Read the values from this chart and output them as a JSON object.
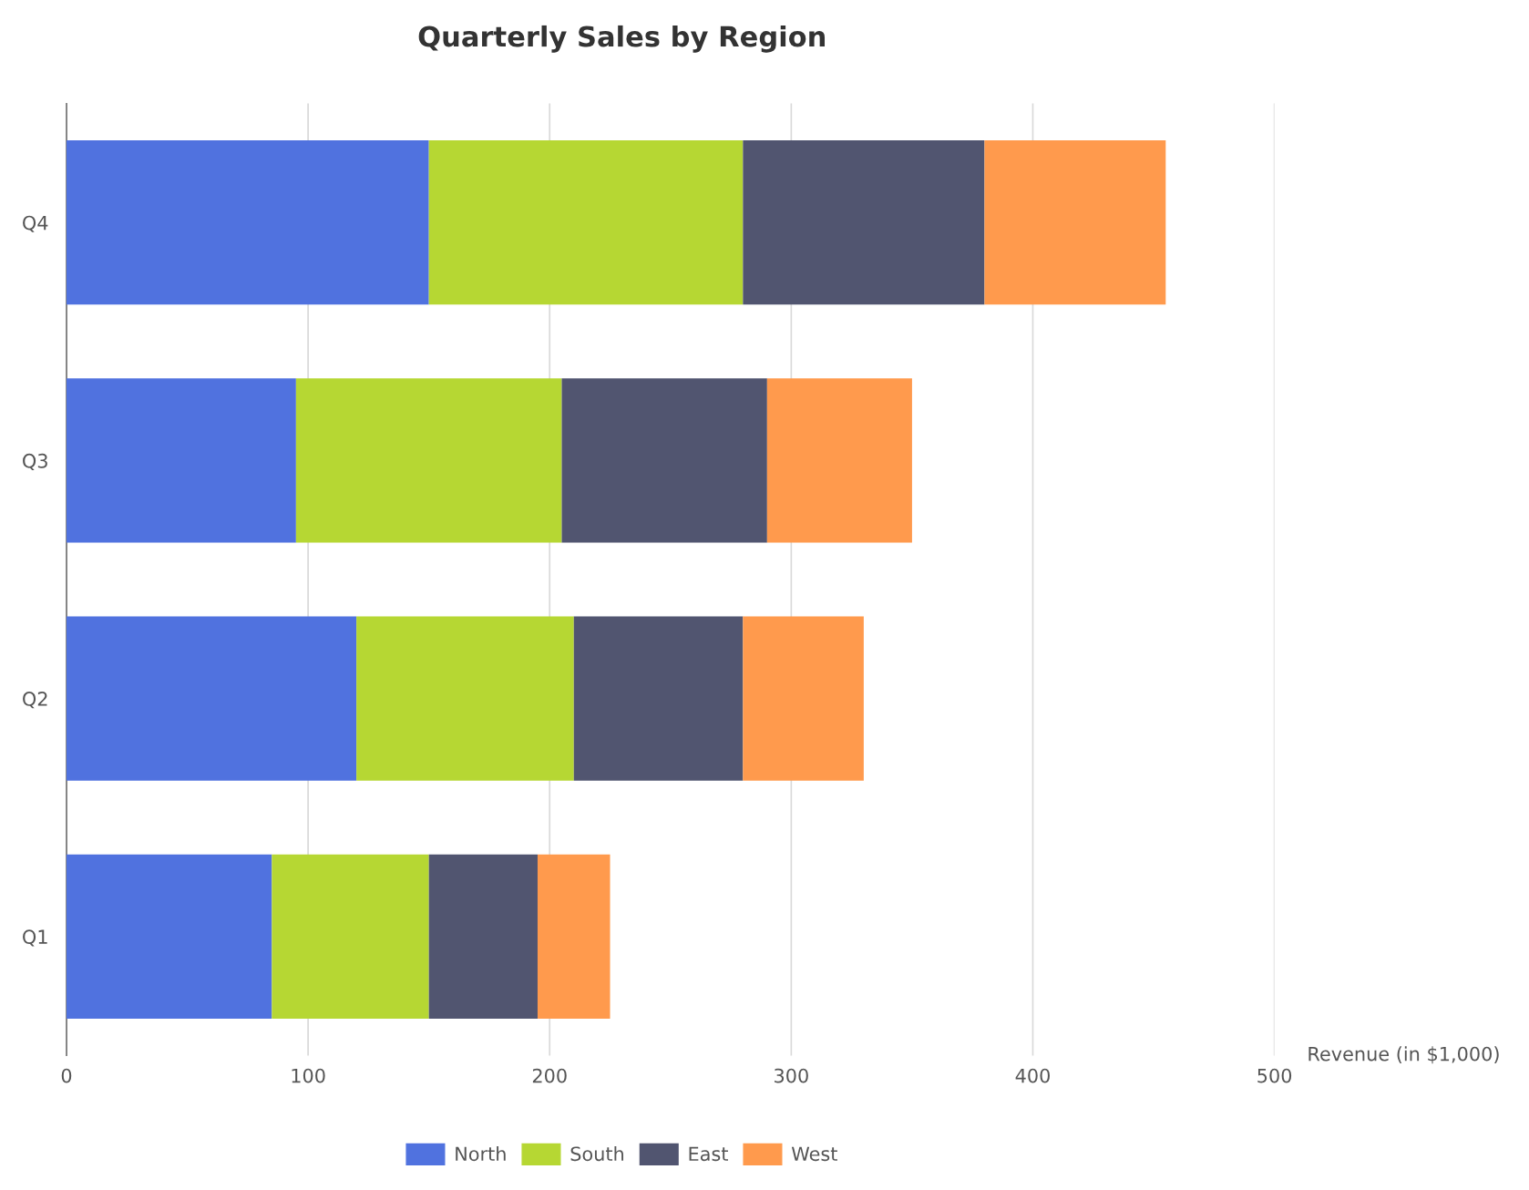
{
  "chart_data": {
    "type": "bar",
    "orientation": "horizontal",
    "stacked": true,
    "title": "Quarterly Sales by Region",
    "xlabel": "Revenue (in $1,000)",
    "categories": [
      "Q4",
      "Q3",
      "Q2",
      "Q1"
    ],
    "series": [
      {
        "name": "North",
        "color": "#5072df",
        "values": [
          150,
          95,
          120,
          85
        ]
      },
      {
        "name": "South",
        "color": "#b6d733",
        "values": [
          130,
          110,
          90,
          65
        ]
      },
      {
        "name": "East",
        "color": "#515570",
        "values": [
          100,
          85,
          70,
          45
        ]
      },
      {
        "name": "West",
        "color": "#ff9a4d",
        "values": [
          75,
          60,
          50,
          30
        ]
      }
    ],
    "xlim": [
      0,
      500
    ],
    "xticks": [
      0,
      100,
      200,
      300,
      400,
      500
    ],
    "grid": "x",
    "legend": "bottom"
  }
}
